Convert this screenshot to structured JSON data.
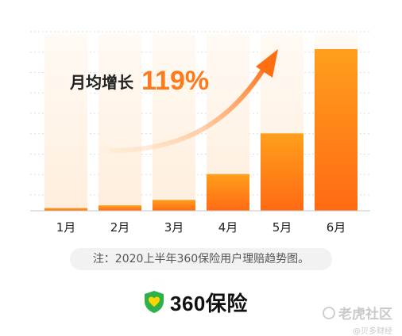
{
  "chart_data": {
    "type": "bar",
    "categories": [
      "1月",
      "2月",
      "3月",
      "4月",
      "5月",
      "6月"
    ],
    "values": [
      2,
      4,
      8,
      27,
      57,
      119
    ],
    "ylim": [
      0,
      119
    ],
    "grid": true,
    "annotation": {
      "text": "月均增长",
      "value": "119%"
    },
    "colors": {
      "bar_top": "#ff9a1f",
      "bar_bottom": "#ff6a14",
      "bar_bg": "#fff3e5",
      "arrow": "#ff7a1a",
      "grid": "#dddddd"
    }
  },
  "note": "注：2020上半年360保险用户理赔趋势图。",
  "brand": {
    "icon": "shield-heart-icon",
    "name": "360保险",
    "color": "#28a745"
  },
  "watermark": {
    "main": "老虎社区",
    "sub": "@贝多财经"
  }
}
